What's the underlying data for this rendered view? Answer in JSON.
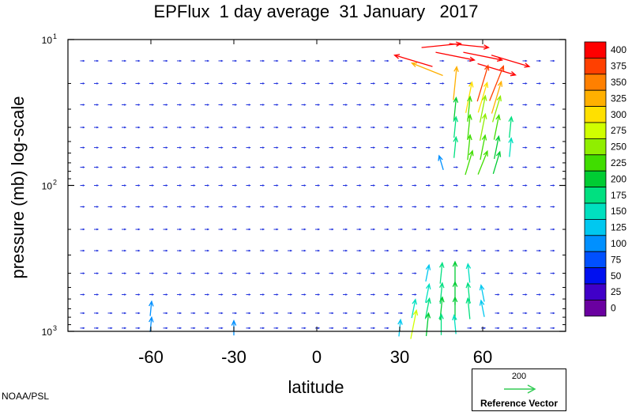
{
  "page": {
    "title": "EPFlux  1 day average  31 January   2017",
    "credit": "NOAA/PSL"
  },
  "reference": {
    "value": "200",
    "label": "Reference Vector",
    "color": "#33cc55"
  },
  "chart_data": {
    "type": "quiver",
    "title": "EPFlux  1 day average  31 January   2017",
    "xlabel": "latitude",
    "ylabel": "pressure (mb)  log-scale",
    "xlim": [
      -90,
      90
    ],
    "ylim": [
      1000,
      10
    ],
    "yscale": "log",
    "x_ticks": [
      -60,
      -30,
      0,
      30,
      60
    ],
    "y_ticks": [
      {
        "value": 1000,
        "base": "10",
        "exp": "3"
      },
      {
        "value": 100,
        "base": "10",
        "exp": "2"
      },
      {
        "value": 10,
        "base": "10",
        "exp": "1"
      }
    ],
    "colorbar": {
      "labels": [
        "400",
        "375",
        "350",
        "325",
        "300",
        "275",
        "250",
        "225",
        "200",
        "175",
        "150",
        "125",
        "100",
        "75",
        "50",
        "25",
        "0"
      ],
      "colors": [
        "#ff0000",
        "#ff4000",
        "#ff8000",
        "#ffb000",
        "#ffe000",
        "#d0ff00",
        "#90ee00",
        "#40dd00",
        "#00cc33",
        "#00e080",
        "#00e0c0",
        "#00c8f0",
        "#0090ff",
        "#0050ff",
        "#0010f0",
        "#4000c8",
        "#6a00a0"
      ]
    },
    "vectors": [
      {
        "lat": 35,
        "p": 14,
        "u": -1.0,
        "v": 0.3,
        "mag": 400
      },
      {
        "lat": 45,
        "p": 11,
        "u": 1.0,
        "v": 0.1,
        "mag": 400
      },
      {
        "lat": 50,
        "p": 13,
        "u": 1.0,
        "v": -0.2,
        "mag": 400
      },
      {
        "lat": 55,
        "p": 11,
        "u": 1.0,
        "v": -0.1,
        "mag": 400
      },
      {
        "lat": 60,
        "p": 13,
        "u": 1.0,
        "v": -0.2,
        "mag": 400
      },
      {
        "lat": 65,
        "p": 16,
        "u": 1.0,
        "v": -0.3,
        "mag": 400
      },
      {
        "lat": 70,
        "p": 14,
        "u": 1.0,
        "v": -0.3,
        "mag": 400
      },
      {
        "lat": 40,
        "p": 16,
        "u": -1.0,
        "v": 0.4,
        "mag": 325
      },
      {
        "lat": 50,
        "p": 20,
        "u": 0.1,
        "v": 1.0,
        "mag": 325
      },
      {
        "lat": 60,
        "p": 20,
        "u": 0.3,
        "v": 1.0,
        "mag": 375
      },
      {
        "lat": 65,
        "p": 20,
        "u": 0.4,
        "v": 1.0,
        "mag": 375
      },
      {
        "lat": 55,
        "p": 25,
        "u": 0.2,
        "v": 1.0,
        "mag": 300
      },
      {
        "lat": 60,
        "p": 25,
        "u": 0.3,
        "v": 1.0,
        "mag": 300
      },
      {
        "lat": 65,
        "p": 25,
        "u": 0.3,
        "v": 1.0,
        "mag": 325
      },
      {
        "lat": 50,
        "p": 30,
        "u": 0.1,
        "v": 1.0,
        "mag": 200
      },
      {
        "lat": 55,
        "p": 30,
        "u": 0.1,
        "v": 1.0,
        "mag": 225
      },
      {
        "lat": 60,
        "p": 30,
        "u": 0.2,
        "v": 1.0,
        "mag": 250
      },
      {
        "lat": 65,
        "p": 30,
        "u": 0.3,
        "v": 1.0,
        "mag": 250
      },
      {
        "lat": 50,
        "p": 40,
        "u": 0.1,
        "v": 1.0,
        "mag": 175
      },
      {
        "lat": 55,
        "p": 40,
        "u": 0.1,
        "v": 1.0,
        "mag": 225
      },
      {
        "lat": 60,
        "p": 40,
        "u": 0.2,
        "v": 1.0,
        "mag": 250
      },
      {
        "lat": 65,
        "p": 40,
        "u": 0.2,
        "v": 1.0,
        "mag": 225
      },
      {
        "lat": 70,
        "p": 40,
        "u": 0.1,
        "v": 1.0,
        "mag": 175
      },
      {
        "lat": 50,
        "p": 55,
        "u": 0.1,
        "v": 1.0,
        "mag": 175
      },
      {
        "lat": 55,
        "p": 55,
        "u": 0.1,
        "v": 1.0,
        "mag": 225
      },
      {
        "lat": 60,
        "p": 55,
        "u": 0.2,
        "v": 1.0,
        "mag": 225
      },
      {
        "lat": 65,
        "p": 55,
        "u": 0.2,
        "v": 1.0,
        "mag": 200
      },
      {
        "lat": 70,
        "p": 55,
        "u": 0.1,
        "v": 1.0,
        "mag": 150
      },
      {
        "lat": 55,
        "p": 70,
        "u": 0.3,
        "v": 1.0,
        "mag": 225
      },
      {
        "lat": 60,
        "p": 70,
        "u": 0.4,
        "v": 1.0,
        "mag": 225
      },
      {
        "lat": 65,
        "p": 70,
        "u": 0.3,
        "v": 1.0,
        "mag": 200
      },
      {
        "lat": 45,
        "p": 70,
        "u": -0.3,
        "v": 1.0,
        "mag": 100
      },
      {
        "lat": 40,
        "p": 400,
        "u": 0.2,
        "v": 1.0,
        "mag": 125
      },
      {
        "lat": 45,
        "p": 400,
        "u": 0.1,
        "v": 1.0,
        "mag": 175
      },
      {
        "lat": 50,
        "p": 400,
        "u": 0.0,
        "v": 1.0,
        "mag": 200
      },
      {
        "lat": 55,
        "p": 400,
        "u": -0.1,
        "v": 1.0,
        "mag": 150
      },
      {
        "lat": 40,
        "p": 550,
        "u": 0.2,
        "v": 1.0,
        "mag": 150
      },
      {
        "lat": 45,
        "p": 550,
        "u": 0.1,
        "v": 1.0,
        "mag": 175
      },
      {
        "lat": 50,
        "p": 550,
        "u": 0.0,
        "v": 1.0,
        "mag": 200
      },
      {
        "lat": 55,
        "p": 550,
        "u": -0.1,
        "v": 1.0,
        "mag": 175
      },
      {
        "lat": 60,
        "p": 550,
        "u": -0.2,
        "v": 1.0,
        "mag": 125
      },
      {
        "lat": 35,
        "p": 700,
        "u": 0.2,
        "v": 1.0,
        "mag": 150
      },
      {
        "lat": 40,
        "p": 700,
        "u": 0.2,
        "v": 1.0,
        "mag": 175
      },
      {
        "lat": 45,
        "p": 700,
        "u": 0.1,
        "v": 1.0,
        "mag": 200
      },
      {
        "lat": 50,
        "p": 700,
        "u": 0.0,
        "v": 1.0,
        "mag": 200
      },
      {
        "lat": 55,
        "p": 700,
        "u": -0.1,
        "v": 1.0,
        "mag": 175
      },
      {
        "lat": 60,
        "p": 700,
        "u": -0.2,
        "v": 1.0,
        "mag": 125
      },
      {
        "lat": 35,
        "p": 900,
        "u": 0.2,
        "v": 1.0,
        "mag": 275
      },
      {
        "lat": 40,
        "p": 900,
        "u": 0.1,
        "v": 1.0,
        "mag": 200
      },
      {
        "lat": 45,
        "p": 900,
        "u": 0.0,
        "v": 1.0,
        "mag": 175
      },
      {
        "lat": 50,
        "p": 900,
        "u": -0.1,
        "v": 1.0,
        "mag": 150
      },
      {
        "lat": 30,
        "p": 950,
        "u": 0.1,
        "v": 1.0,
        "mag": 125
      },
      {
        "lat": -60,
        "p": 700,
        "u": 0.1,
        "v": 1.0,
        "mag": 100
      },
      {
        "lat": -60,
        "p": 900,
        "u": 0.1,
        "v": 1.0,
        "mag": 100
      },
      {
        "lat": -30,
        "p": 950,
        "u": 0.0,
        "v": 1.0,
        "mag": 100
      }
    ]
  }
}
